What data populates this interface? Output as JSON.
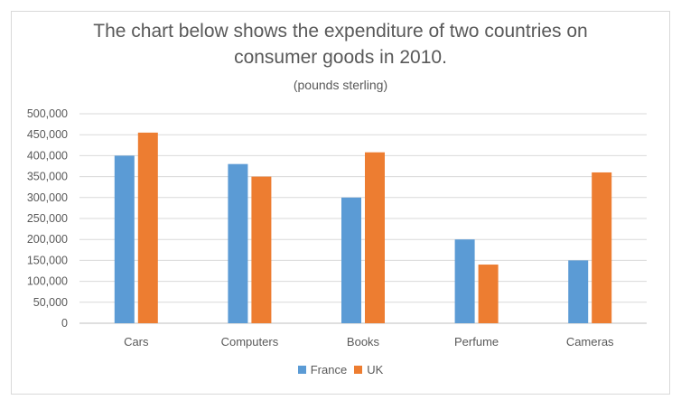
{
  "chart_data": {
    "type": "bar",
    "title_line1": "The chart below shows the expenditure of two countries on",
    "title_line2": "consumer goods in 2010.",
    "subtitle": "(pounds sterling)",
    "xlabel": "",
    "ylabel": "",
    "ylim": [
      0,
      500000
    ],
    "yticks": [
      "0",
      "50,000",
      "100,000",
      "150,000",
      "200,000",
      "250,000",
      "300,000",
      "350,000",
      "400,000",
      "450,000",
      "500,000"
    ],
    "categories": [
      "Cars",
      "Computers",
      "Books",
      "Perfume",
      "Cameras"
    ],
    "series": [
      {
        "name": "France",
        "color": "#5b9bd5",
        "values": [
          400000,
          380000,
          300000,
          200000,
          150000
        ]
      },
      {
        "name": "UK",
        "color": "#ed7d31",
        "values": [
          455000,
          350000,
          408000,
          140000,
          360000
        ]
      }
    ],
    "grid": true,
    "legend": "bottom"
  }
}
